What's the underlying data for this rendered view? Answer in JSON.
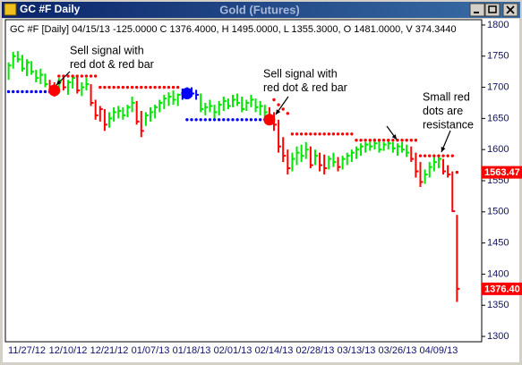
{
  "window_title": "GC #F Daily",
  "chart_data": {
    "type": "ohlc",
    "title": "Gold (Futures)",
    "subtitle": "GC #F [Daily] 04/15/13  -125.0000 C 1376.4000, H 1495.0000, L 1355.3000, O 1481.0000, V 374.3440",
    "categories": [
      null,
      null,
      null,
      null,
      "11/27/12",
      null,
      null,
      null,
      null,
      null,
      null,
      null,
      null,
      "12/10/12",
      null,
      null,
      null,
      null,
      null,
      null,
      null,
      null,
      "12/21/12",
      null,
      null,
      null,
      null,
      null,
      null,
      null,
      null,
      "01/07/13",
      null,
      null,
      null,
      null,
      null,
      null,
      null,
      null,
      "01/18/13",
      null,
      null,
      null,
      null,
      null,
      null,
      null,
      null,
      "02/01/13",
      null,
      null,
      null,
      null,
      null,
      null,
      null,
      null,
      "02/14/13",
      null,
      null,
      null,
      null,
      null,
      null,
      null,
      null,
      "02/28/13",
      null,
      null,
      null,
      null,
      null,
      null,
      null,
      null,
      "03/13/13",
      null,
      null,
      null,
      null,
      null,
      null,
      null,
      null,
      "03/26/13",
      null,
      null,
      null,
      null,
      null,
      null,
      null,
      null,
      "04/09/13",
      null,
      null,
      null,
      null
    ],
    "high": [
      1740,
      1757,
      1758,
      1752,
      1745,
      1742,
      1728,
      1730,
      1722,
      1712,
      1708,
      1715,
      1718,
      1712,
      1720,
      1718,
      1708,
      1715,
      1705,
      1680,
      1670,
      1665,
      1660,
      1668,
      1670,
      1668,
      1672,
      1685,
      1678,
      1662,
      1660,
      1668,
      1672,
      1680,
      1688,
      1692,
      1695,
      1690,
      1698,
      1700,
      1700,
      1696,
      1690,
      1675,
      1680,
      1672,
      1678,
      1685,
      1682,
      1688,
      1690,
      1685,
      1680,
      1688,
      1682,
      1678,
      1672,
      1668,
      1660,
      1648,
      1620,
      1600,
      1595,
      1605,
      1608,
      1612,
      1605,
      1600,
      1595,
      1592,
      1590,
      1595,
      1588,
      1590,
      1595,
      1600,
      1605,
      1610,
      1612,
      1615,
      1618,
      1615,
      1612,
      1615,
      1612,
      1610,
      1612,
      1608,
      1605,
      1595,
      1580,
      1568,
      1580,
      1588,
      1592,
      1585,
      1575,
      1565,
      1495
    ],
    "low": [
      1712,
      1730,
      1740,
      1725,
      1718,
      1720,
      1708,
      1705,
      1700,
      1690,
      1685,
      1690,
      1695,
      1688,
      1698,
      1690,
      1686,
      1695,
      1670,
      1648,
      1645,
      1630,
      1635,
      1645,
      1650,
      1648,
      1652,
      1660,
      1640,
      1620,
      1638,
      1645,
      1650,
      1660,
      1665,
      1670,
      1672,
      1670,
      1680,
      1682,
      1685,
      1680,
      1660,
      1655,
      1660,
      1650,
      1655,
      1662,
      1665,
      1668,
      1670,
      1660,
      1662,
      1668,
      1660,
      1655,
      1650,
      1640,
      1630,
      1595,
      1580,
      1560,
      1565,
      1575,
      1580,
      1585,
      1570,
      1575,
      1565,
      1560,
      1568,
      1572,
      1565,
      1568,
      1575,
      1580,
      1585,
      1590,
      1595,
      1598,
      1600,
      1595,
      1598,
      1600,
      1595,
      1590,
      1595,
      1588,
      1580,
      1555,
      1540,
      1545,
      1555,
      1565,
      1570,
      1560,
      1555,
      1500,
      1355.3
    ],
    "close": [
      1735,
      1750,
      1745,
      1730,
      1740,
      1725,
      1715,
      1720,
      1705,
      1695,
      1692,
      1710,
      1700,
      1708,
      1715,
      1695,
      1700,
      1705,
      1675,
      1655,
      1665,
      1640,
      1650,
      1660,
      1662,
      1655,
      1668,
      1675,
      1645,
      1630,
      1655,
      1660,
      1668,
      1675,
      1682,
      1685,
      1680,
      1688,
      1692,
      1695,
      1690,
      1688,
      1665,
      1668,
      1670,
      1660,
      1672,
      1678,
      1670,
      1680,
      1675,
      1665,
      1675,
      1680,
      1668,
      1670,
      1660,
      1648,
      1640,
      1605,
      1590,
      1570,
      1585,
      1595,
      1590,
      1600,
      1575,
      1590,
      1575,
      1570,
      1585,
      1580,
      1572,
      1585,
      1590,
      1595,
      1600,
      1605,
      1608,
      1605,
      1610,
      1600,
      1608,
      1610,
      1602,
      1605,
      1600,
      1595,
      1585,
      1565,
      1548,
      1560,
      1572,
      1580,
      1585,
      1565,
      1560,
      1501,
      1376.4
    ],
    "state_colors": [
      "#0000ff",
      "#00e600",
      "#ff0000"
    ],
    "bar_state": [
      1,
      1,
      1,
      1,
      1,
      1,
      1,
      1,
      1,
      2,
      2,
      1,
      2,
      1,
      1,
      2,
      1,
      1,
      2,
      2,
      2,
      2,
      1,
      1,
      1,
      1,
      1,
      1,
      2,
      2,
      1,
      1,
      1,
      1,
      1,
      1,
      1,
      1,
      0,
      0,
      0,
      0,
      1,
      1,
      1,
      1,
      1,
      1,
      1,
      1,
      1,
      1,
      1,
      1,
      1,
      1,
      1,
      2,
      2,
      2,
      2,
      2,
      1,
      1,
      1,
      1,
      2,
      1,
      2,
      2,
      1,
      1,
      2,
      1,
      1,
      1,
      1,
      1,
      1,
      1,
      1,
      1,
      1,
      1,
      1,
      1,
      1,
      1,
      2,
      2,
      2,
      1,
      1,
      1,
      1,
      2,
      2,
      2,
      2
    ],
    "dots": [
      {
        "color": "#ff0000",
        "values": [
          null,
          null,
          null,
          null,
          null,
          null,
          null,
          null,
          null,
          null,
          null,
          1718,
          1718,
          1718,
          1718,
          1718,
          1718,
          1718,
          1718,
          1718,
          1700,
          1700,
          1700,
          1700,
          1700,
          1700,
          1700,
          1700,
          1700,
          1700,
          1700,
          1700,
          1700,
          1700,
          1700,
          1700,
          1700,
          1700,
          null,
          null,
          null,
          null,
          null,
          null,
          null,
          null,
          null,
          null,
          null,
          null,
          null,
          null,
          null,
          null,
          null,
          null,
          null,
          null,
          1680,
          1672,
          1665,
          1658,
          1625,
          1625,
          1625,
          1625,
          1625,
          1625,
          1625,
          1625,
          1625,
          1625,
          1625,
          1625,
          1625,
          1625,
          1615,
          1615,
          1615,
          1615,
          1615,
          1615,
          1615,
          1615,
          1615,
          1615,
          1615,
          1615,
          1615,
          1615,
          1590,
          1590,
          1590,
          1590,
          1590,
          1590,
          1590,
          1590,
          1563.47
        ]
      },
      {
        "color": "#0000ff",
        "values": [
          1693,
          1693,
          1693,
          1693,
          1693,
          1693,
          1693,
          1693,
          1693,
          1693,
          null,
          null,
          null,
          null,
          null,
          null,
          null,
          null,
          null,
          null,
          null,
          null,
          null,
          null,
          null,
          null,
          null,
          null,
          null,
          null,
          null,
          null,
          null,
          null,
          null,
          null,
          null,
          null,
          null,
          1648,
          1648,
          1648,
          1648,
          1648,
          1648,
          1648,
          1648,
          1648,
          1648,
          1648,
          1648,
          1648,
          1648,
          1648,
          1648,
          1648,
          1648,
          1648,
          null,
          null,
          null,
          null,
          null,
          null,
          null,
          null,
          null,
          null,
          null,
          null,
          null,
          null,
          null,
          null,
          null,
          null,
          null,
          null,
          null,
          null,
          null,
          null,
          null,
          null,
          null,
          null,
          null,
          null,
          null,
          null,
          null,
          null,
          null,
          null,
          null,
          null,
          null,
          null,
          null
        ]
      }
    ],
    "signals": [
      {
        "color": "#ff0000",
        "values": [
          null,
          null,
          null,
          null,
          null,
          null,
          null,
          null,
          null,
          null,
          1695,
          null,
          null,
          null,
          null,
          null,
          null,
          null,
          null,
          null,
          null,
          null,
          null,
          null,
          null,
          null,
          null,
          null,
          null,
          null,
          null,
          null,
          null,
          null,
          null,
          null,
          null,
          null,
          null,
          null,
          null,
          null,
          null,
          null,
          null,
          null,
          null,
          null,
          null,
          null,
          null,
          null,
          null,
          null,
          null,
          null,
          null,
          1648,
          null,
          null,
          null,
          null,
          null,
          null,
          null,
          null,
          null,
          null,
          null,
          null,
          null,
          null,
          null,
          null,
          null,
          null,
          null,
          null,
          null,
          null,
          null,
          null,
          null,
          null,
          null,
          null,
          null,
          null,
          null,
          null,
          null,
          null,
          null,
          null,
          null,
          null,
          null,
          null,
          null
        ]
      },
      {
        "color": "#0000ff",
        "values": [
          null,
          null,
          null,
          null,
          null,
          null,
          null,
          null,
          null,
          null,
          null,
          null,
          null,
          null,
          null,
          null,
          null,
          null,
          null,
          null,
          null,
          null,
          null,
          null,
          null,
          null,
          null,
          null,
          null,
          null,
          null,
          null,
          null,
          null,
          null,
          null,
          null,
          null,
          null,
          1690,
          null,
          null,
          null,
          null,
          null,
          null,
          null,
          null,
          null,
          null,
          null,
          null,
          null,
          null,
          null,
          null,
          null,
          null,
          null,
          null,
          null,
          null,
          null,
          null,
          null,
          null,
          null,
          null,
          null,
          null,
          null,
          null,
          null,
          null,
          null,
          null,
          null,
          null,
          null,
          null,
          null,
          null,
          null,
          null,
          null,
          null,
          null,
          null,
          null,
          null,
          null,
          null,
          null,
          null,
          null,
          null,
          null,
          null,
          null
        ]
      }
    ],
    "price_labels": [
      {
        "value": 1563.47,
        "label": "1563.47",
        "color": "#ff0000"
      },
      {
        "value": 1376.4,
        "label": "1376.40",
        "color": "#ff0000"
      }
    ],
    "annotations": [
      [
        "Sell signal with",
        "red dot & red bar"
      ],
      [
        "Sell signal with",
        "red dot & red bar"
      ],
      [
        "Small red",
        "dots are",
        "resistance"
      ]
    ],
    "ylim": [
      1290,
      1810
    ],
    "yticks": [
      1300,
      1350,
      1400,
      1450,
      1500,
      1550,
      1600,
      1650,
      1700,
      1750,
      1800
    ]
  }
}
